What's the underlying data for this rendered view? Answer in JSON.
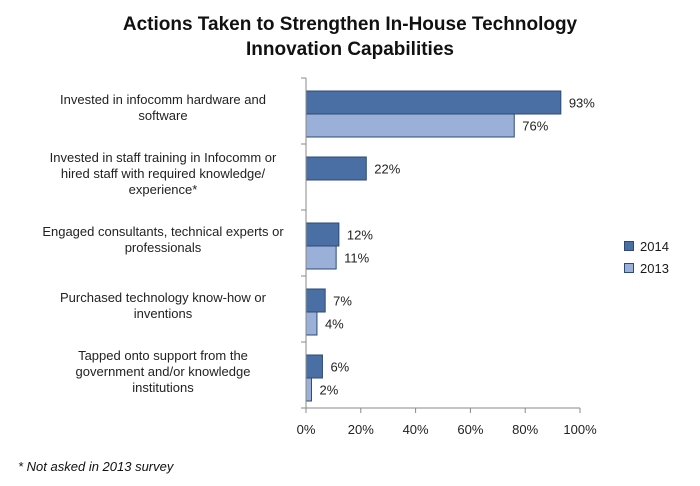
{
  "chart_data": {
    "type": "bar",
    "orientation": "horizontal",
    "title_lines": [
      "Actions Taken to Strengthen In-House Technology",
      "Innovation Capabilities"
    ],
    "categories": [
      [
        "Invested in infocomm hardware and",
        "software"
      ],
      [
        "Invested in staff training in Infocomm or",
        "hired staff with required knowledge/",
        "experience*"
      ],
      [
        "Engaged consultants, technical experts or",
        "professionals"
      ],
      [
        "Purchased technology know-how or",
        "inventions"
      ],
      [
        "Tapped onto support from the",
        "government and/or knowledge",
        "institutions"
      ]
    ],
    "series": [
      {
        "name": "2014",
        "color": "#4a6fa5",
        "values": [
          93,
          22,
          12,
          7,
          6
        ],
        "labels": [
          "93%",
          "22%",
          "12%",
          "7%",
          "6%"
        ]
      },
      {
        "name": "2013",
        "color": "#9bb0d9",
        "values": [
          76,
          null,
          11,
          4,
          2
        ],
        "labels": [
          "76%",
          "",
          "11%",
          "4%",
          "2%"
        ]
      }
    ],
    "xlim": [
      0,
      100
    ],
    "xticks": [
      "0%",
      "20%",
      "40%",
      "60%",
      "80%",
      "100%"
    ],
    "grid": false,
    "legend_position": "right"
  },
  "footnote": "* Not asked in 2013 survey"
}
